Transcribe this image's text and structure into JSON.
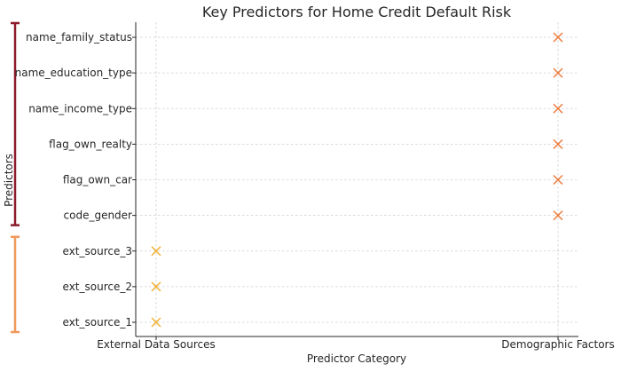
{
  "chart_data": {
    "type": "scatter",
    "title": "Key Predictors for Home Credit Default Risk",
    "xlabel": "Predictor Category",
    "ylabel": "Predictors",
    "x_categories": [
      "External Data Sources",
      "Demographic Factors"
    ],
    "y_categories": [
      "ext_source_1",
      "ext_source_2",
      "ext_source_3",
      "code_gender",
      "flag_own_car",
      "flag_own_realty",
      "name_income_type",
      "name_education_type",
      "name_family_status"
    ],
    "grid": true,
    "marker": "x",
    "points": [
      {
        "x": "External Data Sources",
        "y": "ext_source_1",
        "color": "#f2b134"
      },
      {
        "x": "External Data Sources",
        "y": "ext_source_2",
        "color": "#f2b134"
      },
      {
        "x": "External Data Sources",
        "y": "ext_source_3",
        "color": "#f2b134"
      },
      {
        "x": "Demographic Factors",
        "y": "code_gender",
        "color": "#ed7a3a"
      },
      {
        "x": "Demographic Factors",
        "y": "flag_own_car",
        "color": "#ed7a3a"
      },
      {
        "x": "Demographic Factors",
        "y": "flag_own_realty",
        "color": "#ed7a3a"
      },
      {
        "x": "Demographic Factors",
        "y": "name_income_type",
        "color": "#ed7a3a"
      },
      {
        "x": "Demographic Factors",
        "y": "name_education_type",
        "color": "#ed7a3a"
      },
      {
        "x": "Demographic Factors",
        "y": "name_family_status",
        "color": "#ed7a3a"
      }
    ],
    "brackets": [
      {
        "from": "code_gender",
        "to": "name_family_status",
        "color": "#8b1a2b"
      },
      {
        "from": "ext_source_1",
        "to": "ext_source_3",
        "color": "#f0995a"
      }
    ]
  }
}
